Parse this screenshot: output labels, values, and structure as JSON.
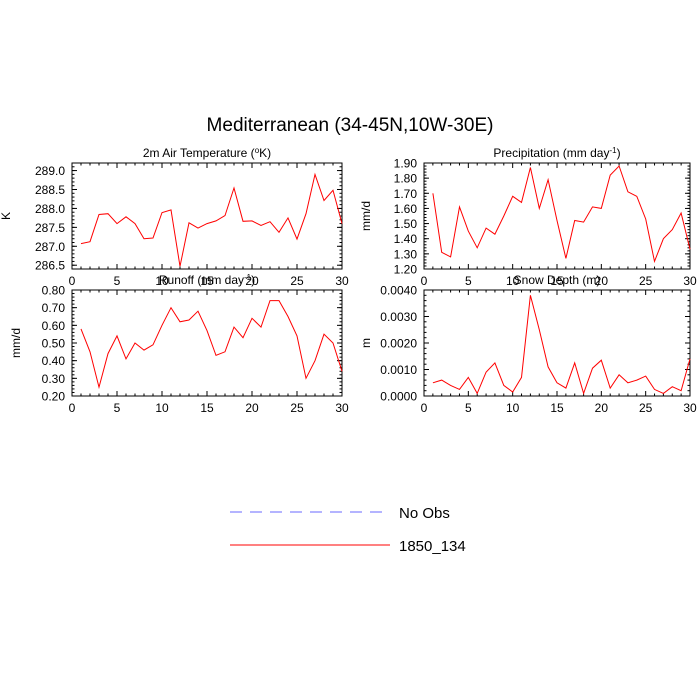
{
  "figure": {
    "title": "Mediterranean (34-45N,10W-30E)"
  },
  "legend": {
    "entries": [
      {
        "label": "No Obs",
        "color": "#6a6aff",
        "dashed": true
      },
      {
        "label": "1850_134",
        "color": "#ff0000",
        "dashed": false
      }
    ]
  },
  "chart_data": [
    {
      "type": "line",
      "title": "2m Air Temperature (°K)",
      "title_main": "2m Air Temperature (",
      "title_sup": "o",
      "title_tail": "K)",
      "xlabel": "",
      "ylabel": "K",
      "xlim": [
        0,
        30
      ],
      "ylim": [
        286.4,
        289.2
      ],
      "xticks": [
        0,
        5,
        10,
        15,
        20,
        25,
        30
      ],
      "yticks": [
        286.5,
        287.0,
        287.5,
        288.0,
        288.5,
        289.0
      ],
      "ytick_labels": [
        "286.5",
        "287.0",
        "287.5",
        "288.0",
        "288.5",
        "289.0"
      ],
      "series": [
        {
          "name": "1850_134",
          "color": "#ff0000",
          "x": [
            1,
            2,
            3,
            4,
            5,
            6,
            7,
            8,
            9,
            10,
            11,
            12,
            13,
            14,
            15,
            16,
            17,
            18,
            19,
            20,
            21,
            22,
            23,
            24,
            25,
            26,
            27,
            28,
            29,
            30
          ],
          "y": [
            287.07,
            287.12,
            287.84,
            287.86,
            287.6,
            287.78,
            287.6,
            287.2,
            287.22,
            287.89,
            287.96,
            286.47,
            287.62,
            287.48,
            287.6,
            287.67,
            287.81,
            288.54,
            287.66,
            287.67,
            287.55,
            287.65,
            287.37,
            287.75,
            287.19,
            287.86,
            288.9,
            288.21,
            288.48,
            287.6
          ]
        }
      ]
    },
    {
      "type": "line",
      "title": "Precipitation (mm day-1)",
      "title_main": "Precipitation (mm day",
      "title_sup": "-1",
      "title_tail": ")",
      "xlabel": "",
      "ylabel": "mm/d",
      "xlim": [
        0,
        30
      ],
      "ylim": [
        1.2,
        1.9
      ],
      "xticks": [
        0,
        5,
        10,
        15,
        20,
        25,
        30
      ],
      "yticks": [
        1.2,
        1.3,
        1.4,
        1.5,
        1.6,
        1.7,
        1.8,
        1.9
      ],
      "ytick_labels": [
        "1.20",
        "1.30",
        "1.40",
        "1.50",
        "1.60",
        "1.70",
        "1.80",
        "1.90"
      ],
      "series": [
        {
          "name": "1850_134",
          "color": "#ff0000",
          "x": [
            1,
            2,
            3,
            4,
            5,
            6,
            7,
            8,
            9,
            10,
            11,
            12,
            13,
            14,
            15,
            16,
            17,
            18,
            19,
            20,
            21,
            22,
            23,
            24,
            25,
            26,
            27,
            28,
            29,
            30
          ],
          "y": [
            1.7,
            1.31,
            1.28,
            1.61,
            1.45,
            1.34,
            1.47,
            1.43,
            1.55,
            1.68,
            1.64,
            1.87,
            1.6,
            1.79,
            1.52,
            1.27,
            1.52,
            1.51,
            1.61,
            1.6,
            1.82,
            1.88,
            1.71,
            1.68,
            1.53,
            1.25,
            1.4,
            1.46,
            1.57,
            1.33
          ]
        }
      ]
    },
    {
      "type": "line",
      "title": "Runoff (mm day-1)",
      "title_main": "Runoff (mm day",
      "title_sup": "-1",
      "title_tail": ")",
      "xlabel": "",
      "ylabel": "mm/d",
      "xlim": [
        0,
        30
      ],
      "ylim": [
        0.2,
        0.8
      ],
      "xticks": [
        0,
        5,
        10,
        15,
        20,
        25,
        30
      ],
      "yticks": [
        0.2,
        0.3,
        0.4,
        0.5,
        0.6,
        0.7,
        0.8
      ],
      "ytick_labels": [
        "0.20",
        "0.30",
        "0.40",
        "0.50",
        "0.60",
        "0.70",
        "0.80"
      ],
      "series": [
        {
          "name": "1850_134",
          "color": "#ff0000",
          "x": [
            1,
            2,
            3,
            4,
            5,
            6,
            7,
            8,
            9,
            10,
            11,
            12,
            13,
            14,
            15,
            16,
            17,
            18,
            19,
            20,
            21,
            22,
            23,
            24,
            25,
            26,
            27,
            28,
            29,
            30
          ],
          "y": [
            0.58,
            0.45,
            0.25,
            0.44,
            0.54,
            0.41,
            0.5,
            0.46,
            0.49,
            0.6,
            0.7,
            0.62,
            0.63,
            0.68,
            0.57,
            0.43,
            0.45,
            0.59,
            0.53,
            0.64,
            0.59,
            0.74,
            0.74,
            0.65,
            0.54,
            0.3,
            0.4,
            0.55,
            0.5,
            0.34
          ]
        }
      ]
    },
    {
      "type": "line",
      "title": "Snow Depth (m)",
      "title_main": "Snow Depth (m)",
      "title_sup": "",
      "title_tail": "",
      "xlabel": "",
      "ylabel": "m",
      "xlim": [
        0,
        30
      ],
      "ylim": [
        0.0,
        0.004
      ],
      "xticks": [
        0,
        5,
        10,
        15,
        20,
        25,
        30
      ],
      "yticks": [
        0.0,
        0.001,
        0.002,
        0.003,
        0.004
      ],
      "ytick_labels": [
        "0.0000",
        "0.0010",
        "0.0020",
        "0.0030",
        "0.0040"
      ],
      "series": [
        {
          "name": "1850_134",
          "color": "#ff0000",
          "x": [
            1,
            2,
            3,
            4,
            5,
            6,
            7,
            8,
            9,
            10,
            11,
            12,
            13,
            14,
            15,
            16,
            17,
            18,
            19,
            20,
            21,
            22,
            23,
            24,
            25,
            26,
            27,
            28,
            29,
            30
          ],
          "y": [
            0.0005,
            0.0006,
            0.0004,
            0.00025,
            0.0007,
            0.0001,
            0.0009,
            0.00125,
            0.0004,
            0.00015,
            0.0007,
            0.0038,
            0.0025,
            0.0011,
            0.0005,
            0.0003,
            0.00125,
            0.0001,
            0.00105,
            0.00135,
            0.0003,
            0.0008,
            0.0005,
            0.0006,
            0.00075,
            0.00025,
            0.0001,
            0.00035,
            0.0002,
            0.0014
          ]
        }
      ]
    }
  ]
}
